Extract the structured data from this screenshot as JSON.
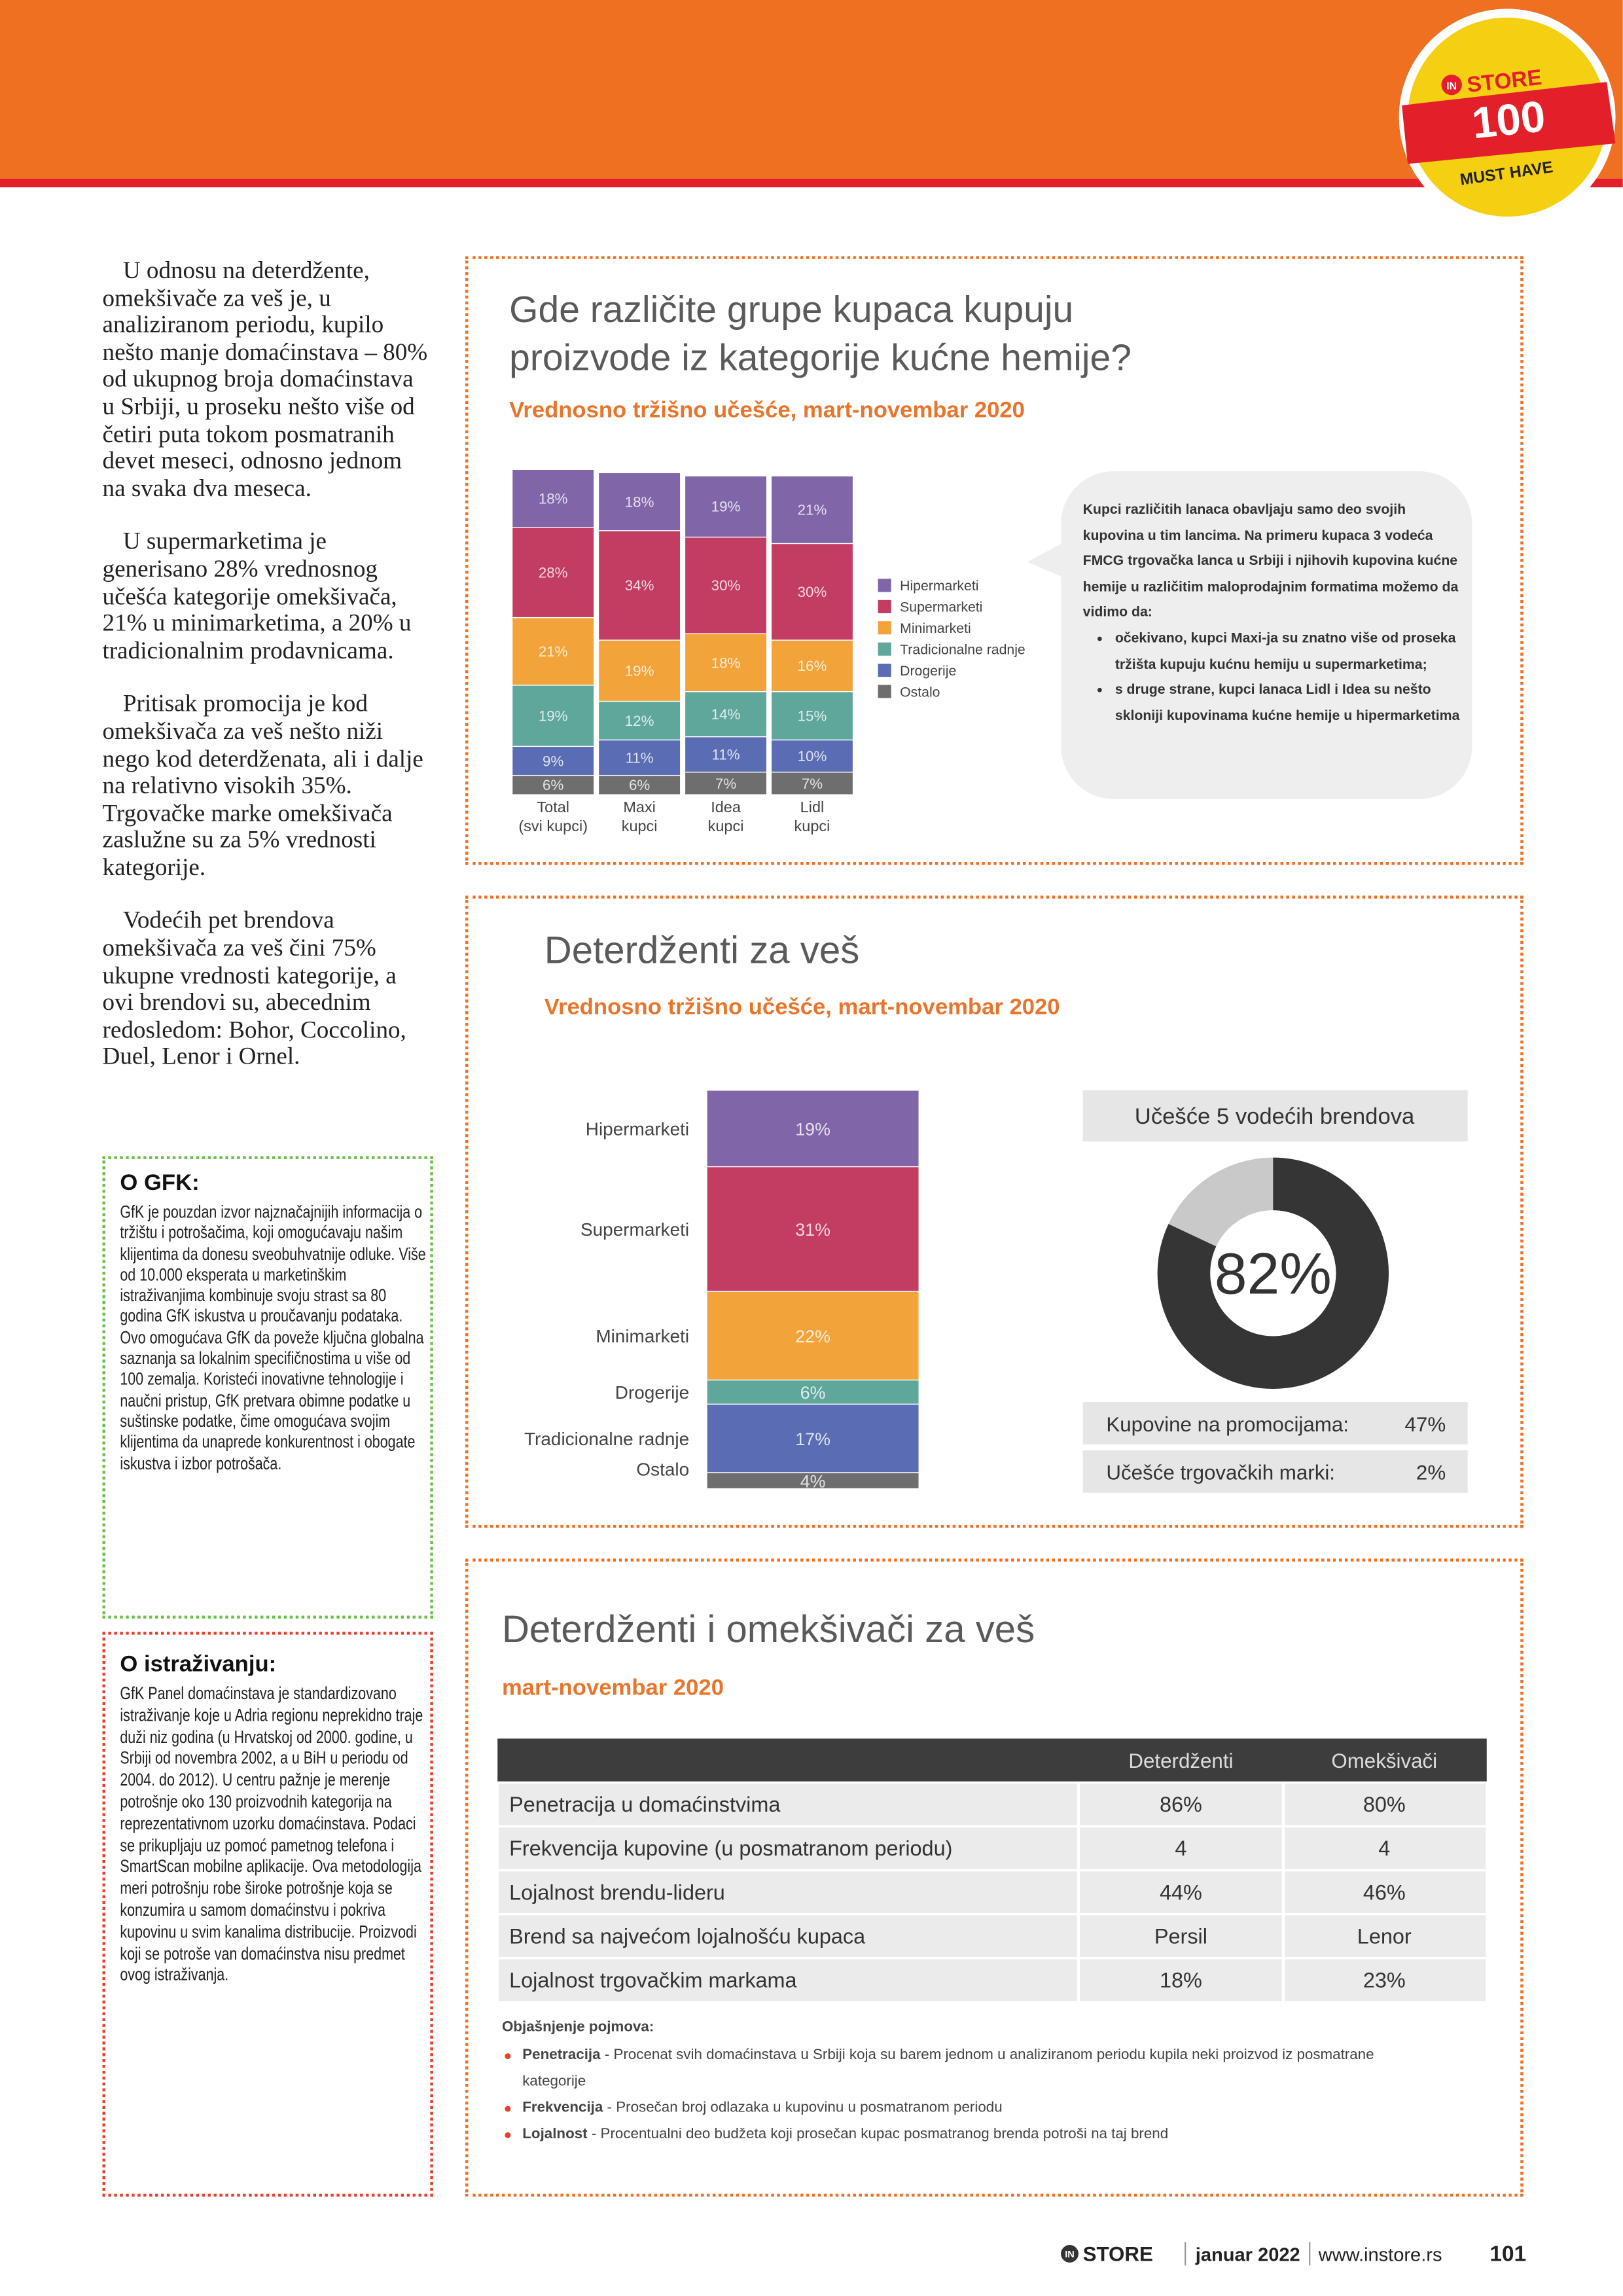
{
  "header": {
    "badge": {
      "logo": "IN",
      "brand": "STORE",
      "number": "100",
      "tagline": "MUST HAVE"
    }
  },
  "article": {
    "paragraphs": [
      "U odnosu na deterdžente, omekšivače za veš je, u analiziranom periodu, kupilo nešto manje domaćinstava – 80% od ukupnog broja domaćinstava u Srbiji, u proseku nešto više od četiri puta tokom posmatranih devet meseci, odnosno jednom na svaka dva meseca.",
      "U supermarketima je generisano 28% vrednosnog učešća kategorije omekšivača, 21% u minimarketima, a 20% u tradicionalnim prodavnicama.",
      "Pritisak promocija je kod omekšivača za veš nešto niži nego kod deterdženata, ali i dalje na relativno visokih 35%. Trgovačke marke omekšivača zaslužne su za 5% vrednosti kategorije.",
      "Vodećih pet brendova omekšivača za veš čini 75% ukupne vrednosti kategorije, a ovi brendovi su, abecednim redosledom: Bohor, Coccolino, Duel, Lenor i Ornel."
    ]
  },
  "sidebar": [
    {
      "title": "O GFK:",
      "text": "GfK je pouzdan izvor najznačajnijih informacija o tržištu i potrošačima, koji omogućavaju našim klijentima da donesu sveobuhvatnije odluke. Više od 10.000 eksperata u marketinškim istraživanjima kombinuje svoju strast sa 80 godina GfK iskustva u proučavanju podataka. Ovo omogućava GfK da poveže ključna globalna saznanja sa lokalnim specifičnostima u više od 100 zemalja. Koristeći inovativne tehnologije i naučni pristup, GfK pretvara obimne podatke u suštinske podatke, čime omogućava svojim klijentima da unaprede konkurentnost i obogate iskustva i izbor potrošača."
    },
    {
      "title": "O istraživanju:",
      "text": "GfK Panel domaćinstava je standardizovano istraživanje koje u Adria regionu neprekidno traje duži niz godina (u Hrvatskoj od 2000. godine, u Srbiji od novembra 2002, a u BiH u periodu od 2004. do 2012). U centru pažnje je merenje potrošnje oko 130 proizvodnih kategorija na reprezentativnom uzorku domaćinstava. Podaci se prikupljaju uz pomoć pametnog telefona i SmartScan mobilne aplikacije. Ova metodologija meri potrošnju robe široke potrošnje koja se konzumira u samom domaćinstvu i pokriva kupovinu u svim kanalima distribucije. Proizvodi koji se potroše van domaćinstva nisu predmet ovog istraživanja."
    }
  ],
  "chart_data": [
    {
      "type": "stacked_bar",
      "title": "Gde različite grupe kupaca kupuju proizvode iz kategorije kućne hemije?",
      "subtitle": "Vrednosno tržišno učešće, mart-novembar 2020",
      "categories": [
        "Total\n(svi kupci)",
        "Maxi\nkupci",
        "Idea\nkupci",
        "Lidl\nkupci"
      ],
      "series": [
        {
          "name": "Hipermarketi",
          "color": "#8066a9",
          "values": [
            18,
            18,
            19,
            21
          ],
          "value_labels": [
            "18%",
            "18%",
            "19%",
            "21%"
          ]
        },
        {
          "name": "Supermarketi",
          "color": "#c33c61",
          "values": [
            28,
            34,
            30,
            30
          ],
          "value_labels": [
            "28%",
            "34%",
            "30%",
            "30%"
          ]
        },
        {
          "name": "Minimarketi",
          "color": "#f2a33a",
          "values": [
            21,
            19,
            18,
            16
          ],
          "value_labels": [
            "21%",
            "19%",
            "18%",
            "16%"
          ]
        },
        {
          "name": "Tradicionalne radnje",
          "color": "#5fa79b",
          "values": [
            19,
            12,
            14,
            15
          ],
          "value_labels": [
            "19%",
            "12%",
            "14%",
            "15%"
          ]
        },
        {
          "name": "Drogerije",
          "color": "#5a6db4",
          "values": [
            9,
            11,
            11,
            10
          ],
          "value_labels": [
            "9%",
            "11%",
            "11%",
            "10%"
          ]
        },
        {
          "name": "Ostalo",
          "color": "#6e6e6e",
          "values": [
            6,
            6,
            7,
            7
          ],
          "value_labels": [
            "6%",
            "6%",
            "7%",
            "7%"
          ]
        }
      ],
      "legend": "right",
      "annotation": {
        "text": "Kupci različitih lanaca obavljaju samo deo svojih kupovina u tim lancima. Na primeru kupaca 3 vodeća FMCG trgovačka lanca u Srbiji i njihovih kupovina kućne hemije u različitim maloprodajnim formatima možemo da vidimo da:",
        "bullets": [
          "očekivano, kupci Maxi-ja su znatno više od proseka tržišta kupuju kućnu hemiju u supermarketima;",
          "s druge strane, kupci lanaca Lidl i Idea su nešto skloniji kupovinama kućne hemije u hipermarketima"
        ]
      }
    },
    {
      "type": "stacked_column",
      "title": "Deterdženti za veš",
      "subtitle": "Vrednosno tržišno učešće, mart-novembar 2020",
      "categories": [
        "Hipermarketi",
        "Supermarketi",
        "Minimarketi",
        "Drogerije",
        "Tradicionalne radnje",
        "Ostalo"
      ],
      "values": [
        19,
        31,
        22,
        6,
        17,
        4
      ],
      "value_labels": [
        "19%",
        "31%",
        "22%",
        "6%",
        "17%",
        "4%"
      ],
      "colors": [
        "#8066a9",
        "#c33c61",
        "#f2a33a",
        "#5fa79b",
        "#5a6db4",
        "#6e6e6e"
      ]
    },
    {
      "type": "donut",
      "title": "Učešće 5 vodećih brendova",
      "value": 82,
      "value_label": "82%",
      "color": "#353535",
      "rest_color": "#c9c9c9",
      "stats": [
        {
          "label": "Kupovine na promocijama:",
          "value": "47%"
        },
        {
          "label": "Učešće trgovačkih marki:",
          "value": "2%"
        }
      ]
    }
  ],
  "table": {
    "title": "Deterdženti i omekšivači za veš",
    "subtitle": "mart-novembar 2020",
    "columns": [
      "Deterdženti",
      "Omekšivači"
    ],
    "rows": [
      {
        "label": "Penetracija u domaćinstvima",
        "cells": [
          "86%",
          "80%"
        ]
      },
      {
        "label": "Frekvencija kupovine (u posmatranom periodu)",
        "cells": [
          "4",
          "4"
        ]
      },
      {
        "label": "Lojalnost brendu-lideru",
        "cells": [
          "44%",
          "46%"
        ]
      },
      {
        "label": "Brend sa najvećom lojalnošću kupaca",
        "cells": [
          "Persil",
          "Lenor"
        ]
      },
      {
        "label": "Lojalnost trgovačkim markama",
        "cells": [
          "18%",
          "23%"
        ]
      }
    ],
    "notes": {
      "heading": "Objašnjenje pojmova:",
      "items": [
        {
          "term": "Penetracija",
          "text": "- Procenat svih domaćinstava u Srbiji koja su barem jednom u analiziranom periodu kupila neki proizvod iz posmatrane kategorije"
        },
        {
          "term": "Frekvencija",
          "text": "- Prosečan broj odlazaka u kupovinu u posmatranom periodu"
        },
        {
          "term": "Lojalnost",
          "text": "- Procentualni deo budžeta koji prosečan kupac posmatranog brenda potroši na taj brend"
        }
      ]
    }
  },
  "footer": {
    "logo": "IN",
    "brand": "STORE",
    "issue": "januar 2022",
    "website": "www.instore.rs",
    "page": "101"
  }
}
